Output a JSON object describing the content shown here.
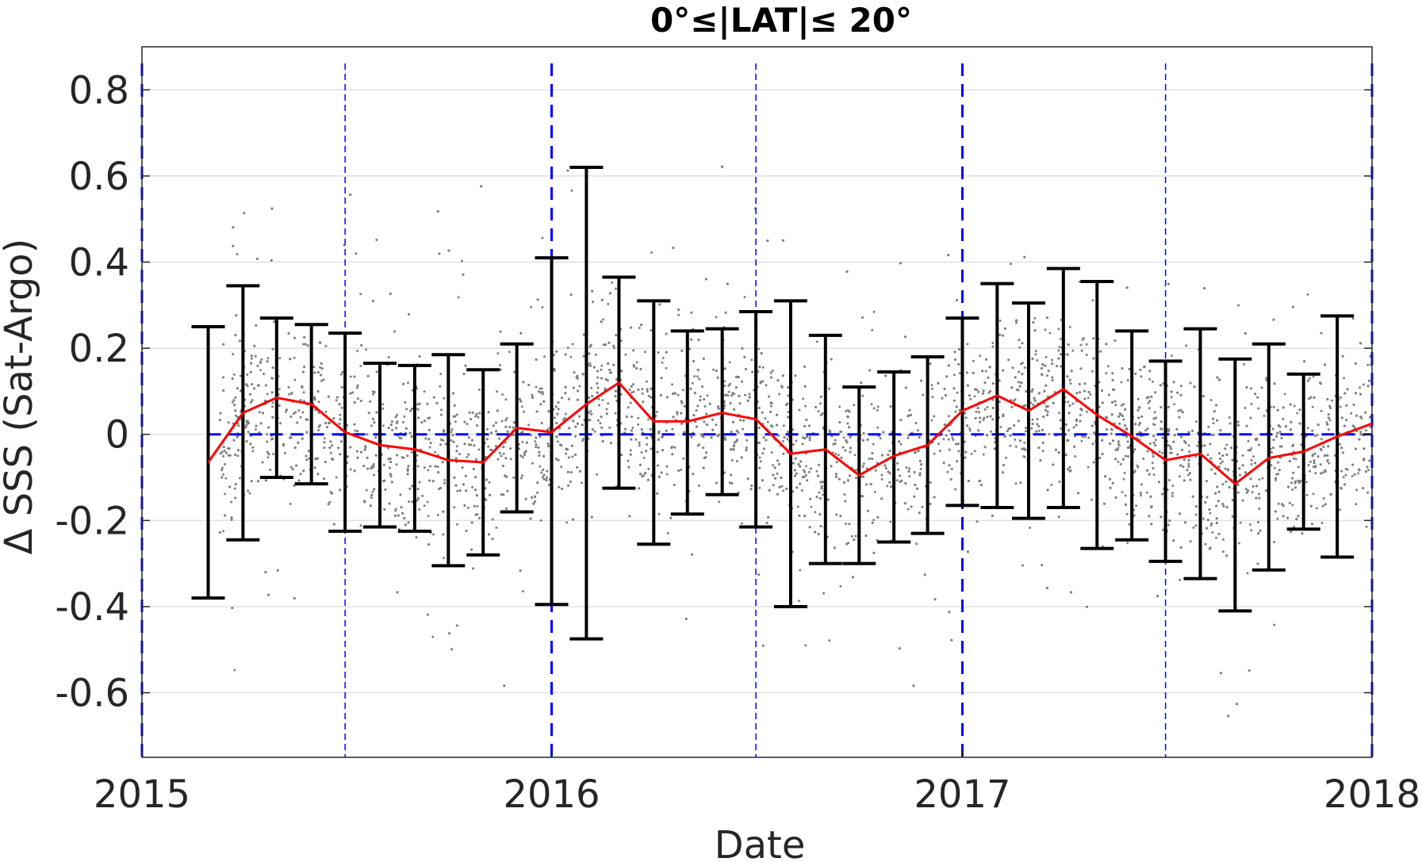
{
  "chart_data": {
    "type": "scatter",
    "title": "0°≤|LAT|≤ 20°",
    "xlabel": "Date",
    "ylabel": "Δ SSS (Sat-Argo)",
    "xlim": [
      "2015-01-01",
      "2018-01-01"
    ],
    "ylim": [
      -0.75,
      0.9
    ],
    "x_ticks": [
      "2015",
      "2016",
      "2017",
      "2018"
    ],
    "y_ticks": [
      -0.6,
      -0.4,
      -0.2,
      0,
      0.2,
      0.4,
      0.6,
      0.8
    ],
    "grid": "horizontal",
    "colors": {
      "scatter": "#808080",
      "monthly_mean": "#ff0000",
      "error_bars": "#000000",
      "reference_lines": "#0000ff"
    },
    "year_boundaries": [
      "2015-01-01",
      "2016-01-01",
      "2017-01-01",
      "2018-01-01"
    ],
    "mid_year_lines": [
      "2015-07-01",
      "2016-07-01",
      "2017-07-01"
    ],
    "zero_line": 0,
    "monthly_stats": [
      {
        "date": "2015-03-01",
        "mean": -0.065,
        "lower": -0.38,
        "upper": 0.25
      },
      {
        "date": "2015-04-01",
        "mean": 0.05,
        "lower": -0.245,
        "upper": 0.345
      },
      {
        "date": "2015-05-01",
        "mean": 0.085,
        "lower": -0.1,
        "upper": 0.27
      },
      {
        "date": "2015-06-01",
        "mean": 0.07,
        "lower": -0.115,
        "upper": 0.255
      },
      {
        "date": "2015-07-01",
        "mean": 0.005,
        "lower": -0.225,
        "upper": 0.235
      },
      {
        "date": "2015-08-01",
        "mean": -0.025,
        "lower": -0.215,
        "upper": 0.165
      },
      {
        "date": "2015-09-01",
        "mean": -0.035,
        "lower": -0.225,
        "upper": 0.16
      },
      {
        "date": "2015-10-01",
        "mean": -0.06,
        "lower": -0.305,
        "upper": 0.185
      },
      {
        "date": "2015-11-01",
        "mean": -0.065,
        "lower": -0.28,
        "upper": 0.15
      },
      {
        "date": "2015-12-01",
        "mean": 0.015,
        "lower": -0.18,
        "upper": 0.21
      },
      {
        "date": "2016-01-01",
        "mean": 0.005,
        "lower": -0.395,
        "upper": 0.41
      },
      {
        "date": "2016-02-01",
        "mean": 0.07,
        "lower": -0.475,
        "upper": 0.62
      },
      {
        "date": "2016-03-01",
        "mean": 0.12,
        "lower": -0.125,
        "upper": 0.365
      },
      {
        "date": "2016-04-01",
        "mean": 0.03,
        "lower": -0.255,
        "upper": 0.31
      },
      {
        "date": "2016-05-01",
        "mean": 0.03,
        "lower": -0.185,
        "upper": 0.24
      },
      {
        "date": "2016-06-01",
        "mean": 0.05,
        "lower": -0.14,
        "upper": 0.245
      },
      {
        "date": "2016-07-01",
        "mean": 0.035,
        "lower": -0.215,
        "upper": 0.285
      },
      {
        "date": "2016-08-01",
        "mean": -0.045,
        "lower": -0.4,
        "upper": 0.31
      },
      {
        "date": "2016-09-01",
        "mean": -0.035,
        "lower": -0.3,
        "upper": 0.23
      },
      {
        "date": "2016-10-01",
        "mean": -0.095,
        "lower": -0.3,
        "upper": 0.11
      },
      {
        "date": "2016-11-01",
        "mean": -0.05,
        "lower": -0.25,
        "upper": 0.145
      },
      {
        "date": "2016-12-01",
        "mean": -0.025,
        "lower": -0.23,
        "upper": 0.18
      },
      {
        "date": "2017-01-01",
        "mean": 0.055,
        "lower": -0.165,
        "upper": 0.27
      },
      {
        "date": "2017-02-01",
        "mean": 0.09,
        "lower": -0.17,
        "upper": 0.35
      },
      {
        "date": "2017-03-01",
        "mean": 0.055,
        "lower": -0.195,
        "upper": 0.305
      },
      {
        "date": "2017-04-01",
        "mean": 0.105,
        "lower": -0.17,
        "upper": 0.385
      },
      {
        "date": "2017-05-01",
        "mean": 0.045,
        "lower": -0.265,
        "upper": 0.355
      },
      {
        "date": "2017-06-01",
        "mean": -0.005,
        "lower": -0.245,
        "upper": 0.24
      },
      {
        "date": "2017-07-01",
        "mean": -0.06,
        "lower": -0.295,
        "upper": 0.17
      },
      {
        "date": "2017-08-01",
        "mean": -0.045,
        "lower": -0.335,
        "upper": 0.245
      },
      {
        "date": "2017-09-01",
        "mean": -0.115,
        "lower": -0.41,
        "upper": 0.175
      },
      {
        "date": "2017-10-01",
        "mean": -0.055,
        "lower": -0.315,
        "upper": 0.21
      },
      {
        "date": "2017-11-01",
        "mean": -0.04,
        "lower": -0.22,
        "upper": 0.14
      },
      {
        "date": "2017-12-01",
        "mean": -0.005,
        "lower": -0.285,
        "upper": 0.275
      },
      {
        "date": "2018-01-01",
        "mean": 0.025,
        "lower": null,
        "upper": null
      }
    ],
    "scatter_note": "dense grey point cloud of individual Sat-Argo differences, roughly centered on the monthly means, spread about ±0.3 with outliers from about -0.75 to 0.85"
  }
}
